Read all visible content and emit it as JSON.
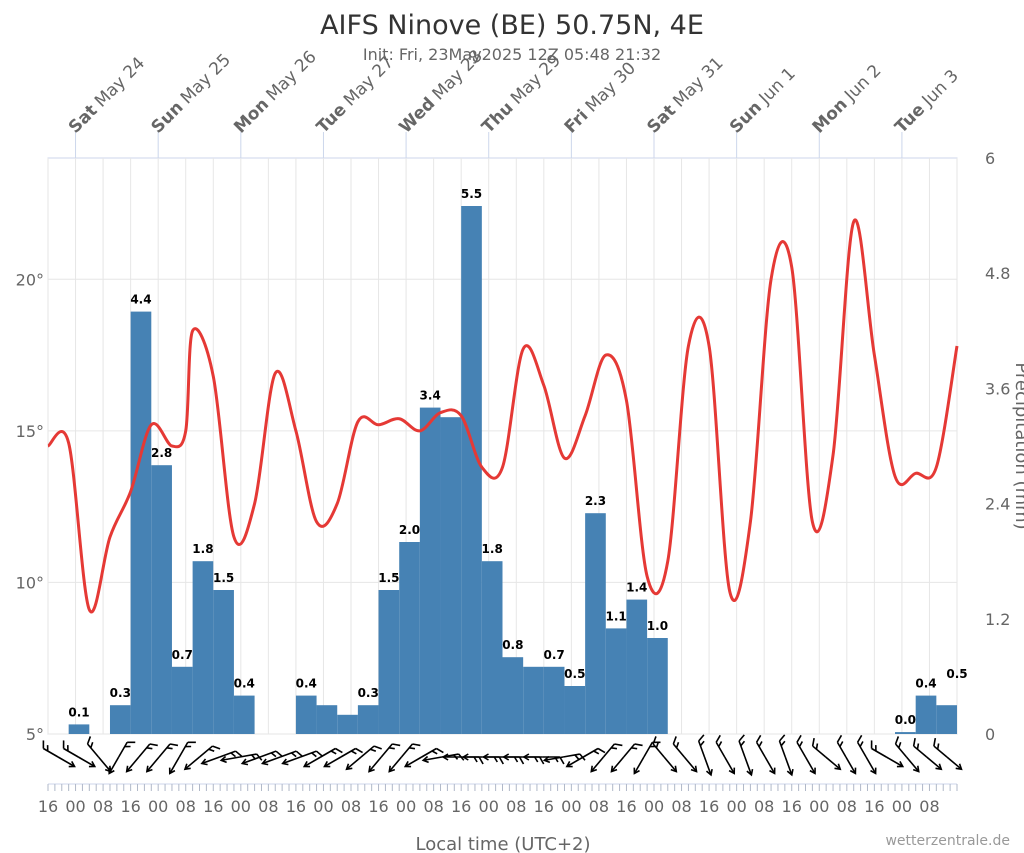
{
  "chart_data": {
    "type": "bar+line",
    "title": "AIFS Ninove (BE) 50.75N, 4E",
    "subtitle": "Init: Fri, 23May2025 12Z 05:48 21:32",
    "xlabel": "Local time (UTC+2)",
    "ylabel_right": "Precipitation (mm)",
    "credit": "wetterzentrale.de",
    "y_left": {
      "ticks": [
        "5°",
        "10°",
        "15°",
        "20°"
      ],
      "tick_values": [
        5,
        10,
        15,
        20
      ],
      "range": [
        5,
        24
      ]
    },
    "y_right": {
      "ticks": [
        "0",
        "1.2",
        "2.4",
        "3.6",
        "4.8",
        "6"
      ],
      "tick_values": [
        0,
        1.2,
        2.4,
        3.6,
        4.8,
        6
      ],
      "range": [
        0,
        6
      ]
    },
    "x_range_hours": [
      0,
      264
    ],
    "x_bottom_ticks": [
      "16",
      "00",
      "08",
      "16",
      "00",
      "08",
      "16",
      "00",
      "08",
      "16",
      "00",
      "08",
      "16",
      "00",
      "08",
      "16",
      "00",
      "08",
      "16",
      "00",
      "08",
      "16",
      "00",
      "08",
      "16",
      "00",
      "08",
      "16",
      "00",
      "08",
      "16",
      "00",
      "08"
    ],
    "days": [
      {
        "day": "Sat",
        "date": "May 24",
        "hour": 8
      },
      {
        "day": "Sun",
        "date": "May 25",
        "hour": 32
      },
      {
        "day": "Mon",
        "date": "May 26",
        "hour": 56
      },
      {
        "day": "Tue",
        "date": "May 27",
        "hour": 80
      },
      {
        "day": "Wed",
        "date": "May 28",
        "hour": 104
      },
      {
        "day": "Thu",
        "date": "May 29",
        "hour": 128
      },
      {
        "day": "Fri",
        "date": "May 30",
        "hour": 152
      },
      {
        "day": "Sat",
        "date": "May 31",
        "hour": 176
      },
      {
        "day": "Sun",
        "date": "Jun 1",
        "hour": 200
      },
      {
        "day": "Mon",
        "date": "Jun 2",
        "hour": 224
      },
      {
        "day": "Tue",
        "date": "Jun 3",
        "hour": 248
      }
    ],
    "precipitation": {
      "name": "Precipitation",
      "color": "#4682b4",
      "bar_hours": [
        6,
        6,
        6,
        6,
        6,
        6,
        6,
        6,
        6,
        6,
        6,
        6,
        6,
        6,
        6,
        6,
        6,
        6,
        6,
        6,
        6,
        6,
        6,
        6,
        6,
        6,
        6,
        6,
        6,
        6,
        6,
        6,
        6,
        6,
        6,
        6,
        6,
        6,
        6,
        6,
        6,
        6,
        6,
        6
      ],
      "values": [
        0.0,
        0.1,
        0.0,
        0.3,
        4.4,
        2.8,
        0.7,
        1.8,
        1.5,
        0.4,
        0.0,
        0.0,
        0.4,
        0.3,
        0.2,
        0.3,
        1.5,
        2.0,
        3.4,
        3.3,
        5.5,
        1.8,
        0.8,
        0.7,
        0.7,
        0.5,
        2.3,
        1.1,
        1.4,
        1.0,
        0.0,
        0.0,
        0.0,
        0.0,
        0.0,
        0.0,
        0.0,
        0.0,
        0.0,
        0.0,
        0.0,
        0.02,
        0.4,
        0.3
      ],
      "labels": [
        "",
        "0.1",
        "",
        "0.3",
        "4.4",
        "2.8",
        "0.7",
        "1.8",
        "1.5",
        "0.4",
        "",
        "",
        "0.4",
        "",
        "",
        "0.3",
        "1.5",
        "2.0",
        "3.4",
        "",
        "5.5",
        "1.8",
        "0.8",
        "",
        "0.7",
        "0.5",
        "2.3",
        "1.1",
        "1.4",
        "1.0",
        "",
        "",
        "",
        "",
        "",
        "",
        "",
        "",
        "",
        "",
        "",
        "0.0",
        "0.4",
        ""
      ]
    },
    "precipitation_tail": {
      "values": [
        0.3,
        0.5
      ],
      "labels": [
        "",
        "0.5"
      ]
    },
    "temperature": {
      "name": "Temperature",
      "color": "#e53935",
      "x_hours": [
        0,
        6,
        12,
        18,
        24,
        30,
        36,
        40,
        42,
        48,
        54,
        60,
        66,
        72,
        78,
        84,
        90,
        96,
        102,
        108,
        114,
        120,
        126,
        132,
        138,
        144,
        150,
        156,
        162,
        168,
        174,
        180,
        186,
        192,
        198,
        204,
        210,
        216,
        222,
        228,
        234,
        240,
        246,
        252,
        258,
        264
      ],
      "values": [
        14.5,
        14.6,
        9.1,
        11.5,
        13.0,
        15.2,
        14.5,
        15.0,
        18.3,
        16.8,
        11.5,
        12.6,
        16.9,
        15.0,
        12.0,
        12.6,
        15.3,
        15.2,
        15.4,
        15.0,
        15.6,
        15.5,
        13.8,
        13.8,
        17.7,
        16.5,
        14.1,
        15.5,
        17.5,
        16.0,
        10.2,
        10.7,
        17.8,
        17.8,
        9.7,
        12.0,
        20.0,
        20.4,
        12.0,
        14.2,
        21.9,
        17.5,
        13.5,
        13.6,
        13.8,
        17.8
      ]
    },
    "wind": {
      "directions_deg": [
        300,
        300,
        320,
        30,
        40,
        40,
        30,
        50,
        70,
        80,
        70,
        70,
        70,
        60,
        60,
        50,
        40,
        40,
        60,
        80,
        90,
        90,
        90,
        90,
        90,
        80,
        60,
        40,
        40,
        30,
        320,
        320,
        340,
        330,
        340,
        330,
        340,
        330,
        310,
        330,
        330,
        300,
        320,
        310,
        310
      ],
      "count": 45
    },
    "grid": true,
    "legend": "none"
  }
}
